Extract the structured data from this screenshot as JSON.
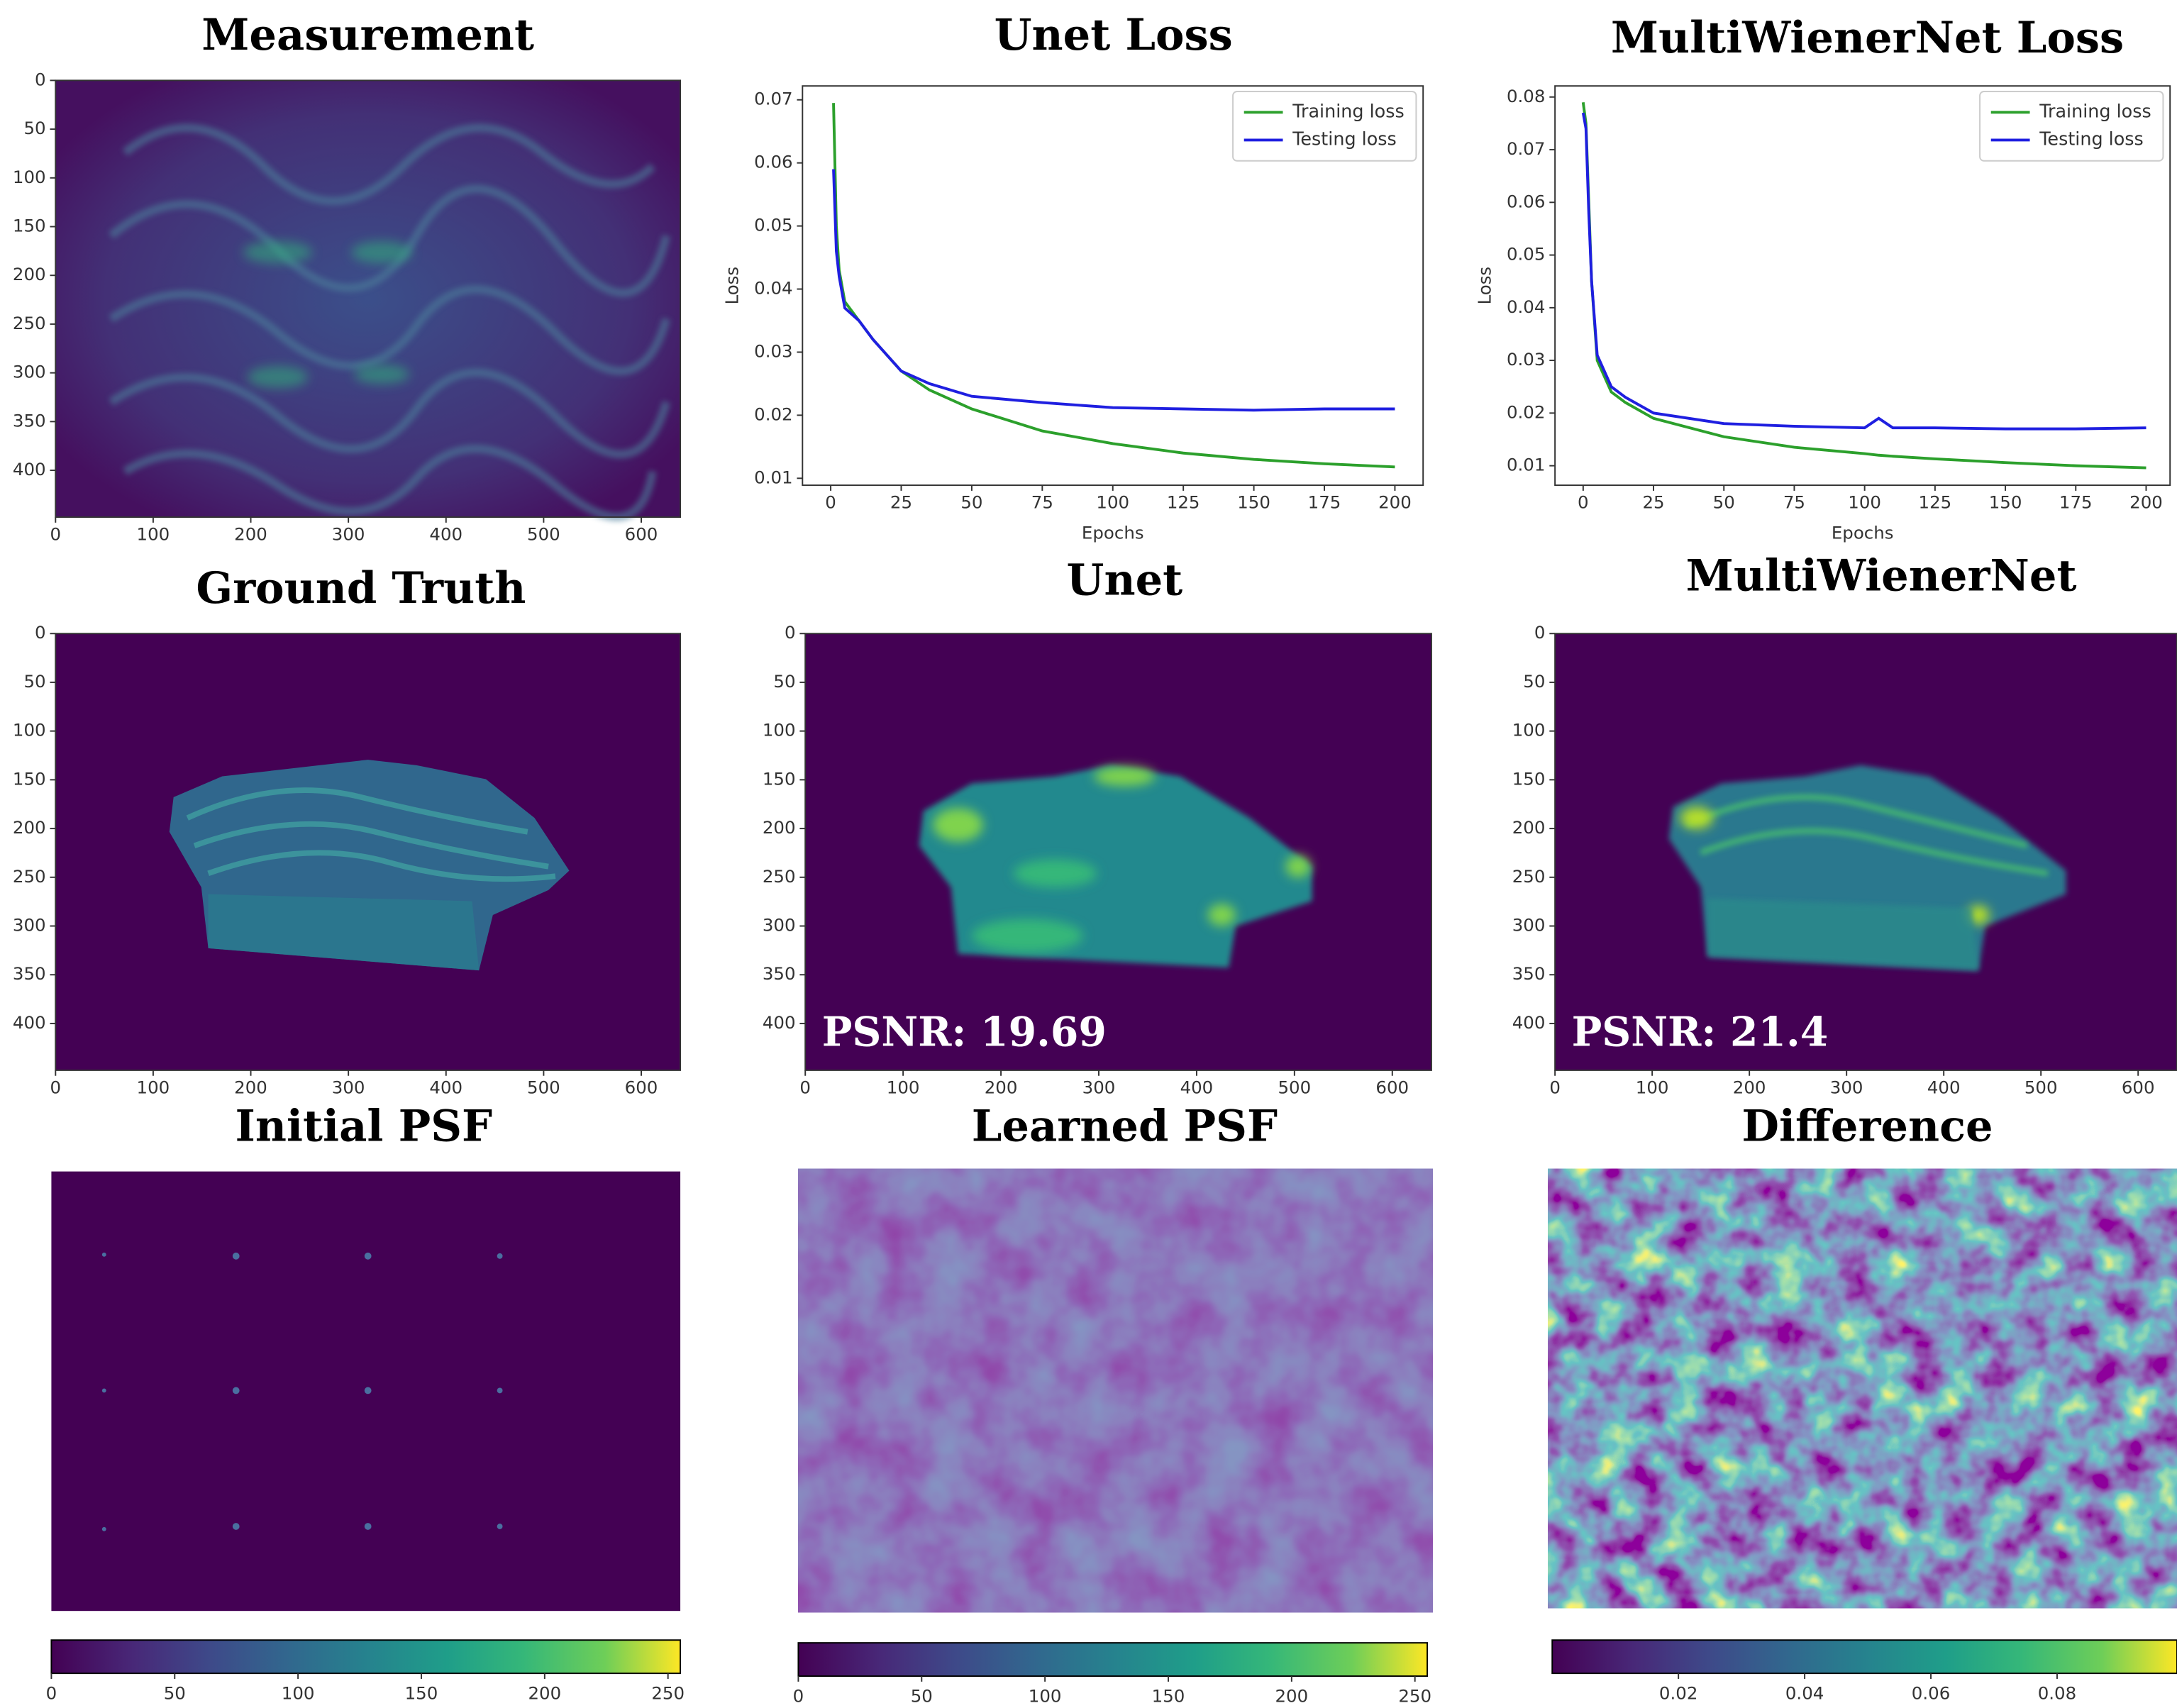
{
  "chart_data": [
    {
      "type": "heatmap",
      "title": "Measurement",
      "xlim": [
        0,
        640
      ],
      "ylim": [
        0,
        448
      ],
      "xticks": [
        0,
        100,
        200,
        300,
        400,
        500,
        600
      ],
      "yticks": [
        0,
        50,
        100,
        150,
        200,
        250,
        300,
        350,
        400
      ]
    },
    {
      "type": "line",
      "title": "Unet Loss",
      "xlabel": "Epochs",
      "ylabel": "Loss",
      "legend": "upper right",
      "x": [
        1,
        2,
        3,
        5,
        10,
        15,
        25,
        35,
        50,
        75,
        100,
        125,
        150,
        175,
        200
      ],
      "series": [
        {
          "name": "Training loss",
          "color": "#2ca02c",
          "values": [
            0.0695,
            0.05,
            0.043,
            0.038,
            0.035,
            0.032,
            0.027,
            0.024,
            0.021,
            0.0175,
            0.0155,
            0.014,
            0.013,
            0.0123,
            0.0118
          ]
        },
        {
          "name": "Testing loss",
          "color": "#1f1fe0",
          "values": [
            0.059,
            0.046,
            0.042,
            0.037,
            0.035,
            0.032,
            0.027,
            0.025,
            0.023,
            0.022,
            0.0212,
            0.021,
            0.0208,
            0.021,
            0.021
          ]
        }
      ],
      "xlim": [
        -10,
        210
      ],
      "ylim": [
        0.0089,
        0.0722
      ],
      "xticks": [
        0,
        25,
        50,
        75,
        100,
        125,
        150,
        175,
        200
      ],
      "yticks": [
        0.01,
        0.02,
        0.03,
        0.04,
        0.05,
        0.06,
        0.07
      ]
    },
    {
      "type": "line",
      "title": "MultiWienerNet Loss",
      "xlabel": "Epochs",
      "ylabel": "Loss",
      "legend": "upper right",
      "x": [
        0,
        1,
        2,
        3,
        5,
        10,
        15,
        25,
        50,
        75,
        100,
        105,
        110,
        125,
        150,
        175,
        200
      ],
      "series": [
        {
          "name": "Training loss",
          "color": "#2ca02c",
          "values": [
            0.079,
            0.075,
            0.06,
            0.045,
            0.03,
            0.024,
            0.022,
            0.019,
            0.0155,
            0.0135,
            0.0123,
            0.012,
            0.0118,
            0.0113,
            0.0106,
            0.01,
            0.0096
          ]
        },
        {
          "name": "Testing loss",
          "color": "#1f1fe0",
          "values": [
            0.077,
            0.074,
            0.058,
            0.045,
            0.031,
            0.025,
            0.023,
            0.02,
            0.018,
            0.0175,
            0.0172,
            0.019,
            0.0172,
            0.0172,
            0.017,
            0.017,
            0.0172
          ]
        }
      ],
      "xlim": [
        -10,
        208.5
      ],
      "ylim": [
        0.0063,
        0.0821
      ],
      "xticks": [
        0,
        25,
        50,
        75,
        100,
        125,
        150,
        175,
        200
      ],
      "yticks": [
        0.01,
        0.02,
        0.03,
        0.04,
        0.05,
        0.06,
        0.07,
        0.08
      ]
    },
    {
      "type": "heatmap",
      "title": "Ground Truth",
      "xlim": [
        0,
        640
      ],
      "ylim": [
        0,
        448
      ],
      "xticks": [
        0,
        100,
        200,
        300,
        400,
        500,
        600
      ],
      "yticks": [
        0,
        50,
        100,
        150,
        200,
        250,
        300,
        350,
        400
      ]
    },
    {
      "type": "heatmap",
      "title": "Unet",
      "annotation": "PSNR: 19.69",
      "xlim": [
        0,
        640
      ],
      "ylim": [
        0,
        448
      ],
      "xticks": [
        0,
        100,
        200,
        300,
        400,
        500,
        600
      ],
      "yticks": [
        0,
        50,
        100,
        150,
        200,
        250,
        300,
        350,
        400
      ]
    },
    {
      "type": "heatmap",
      "title": "MultiWienerNet",
      "annotation": "PSNR: 21.4",
      "xlim": [
        0,
        640
      ],
      "ylim": [
        0,
        448
      ],
      "xticks": [
        0,
        100,
        200,
        300,
        400,
        500,
        600
      ],
      "yticks": [
        0,
        50,
        100,
        150,
        200,
        250,
        300,
        350,
        400
      ]
    },
    {
      "type": "heatmap",
      "title": "Initial PSF",
      "colorbar": {
        "lim": [
          0,
          255
        ],
        "ticks": [
          0,
          50,
          100,
          150,
          200,
          250
        ]
      }
    },
    {
      "type": "heatmap",
      "title": "Learned PSF",
      "colorbar": {
        "lim": [
          0,
          255
        ],
        "ticks": [
          0,
          50,
          100,
          150,
          200,
          250
        ]
      }
    },
    {
      "type": "heatmap",
      "title": "Difference",
      "colorbar": {
        "lim": [
          0,
          0.099
        ],
        "ticks": [
          0.02,
          0.04,
          0.06,
          0.08
        ]
      }
    }
  ]
}
